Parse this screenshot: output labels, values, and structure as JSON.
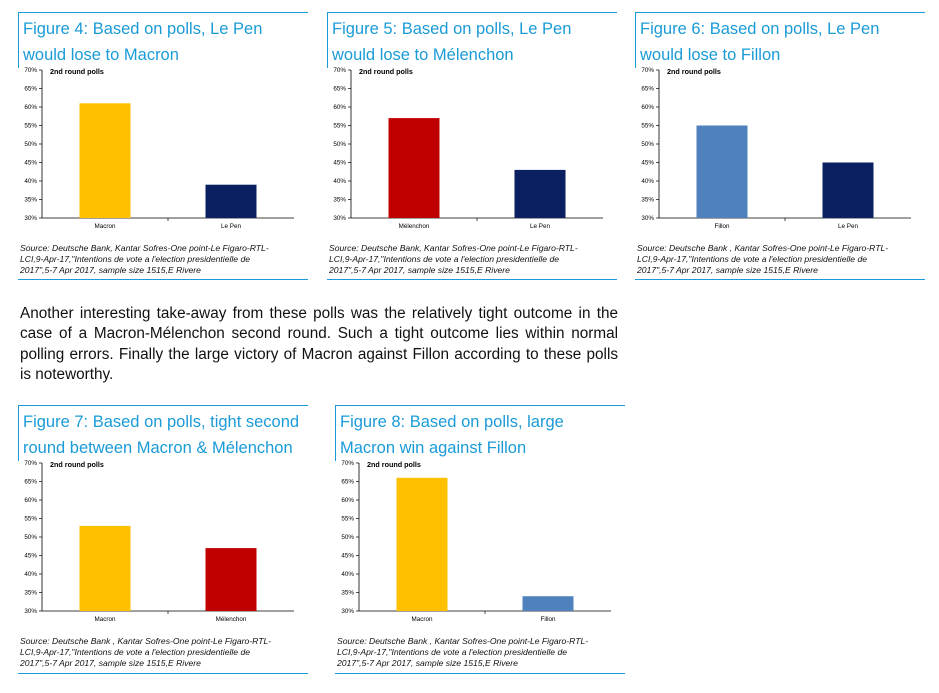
{
  "figures": [
    {
      "title_line1": "Figure 4: Based on polls, Le Pen",
      "title_line2": "would lose to Macron",
      "source_line1": "Source: Deutsche Bank, Kantar Sofres-One point-Le Figaro-RTL-",
      "source_line2": "LCI,9-Apr-17,\"Intentions de vote a l'election presidentielle de",
      "source_line3": "2017\",5-7 Apr 2017, sample size 1515,E Rivere"
    },
    {
      "title_line1": "Figure 5: Based on polls, Le Pen",
      "title_line2": "would lose to Mélenchon",
      "source_line1": "Source: Deutsche Bank, Kantar Sofres-One point-Le Figaro-RTL-",
      "source_line2": "LCI,9-Apr-17,\"Intentions de vote a l'election presidentielle de",
      "source_line3": "2017\",5-7 Apr 2017, sample size 1515,E Rivere"
    },
    {
      "title_line1": "Figure 6: Based on polls, Le Pen",
      "title_line2": "would lose to Fillon",
      "source_line1": "Source: Deutsche Bank , Kantar Sofres-One point-Le Figaro-RTL-",
      "source_line2": "LCI,9-Apr-17,\"Intentions de vote a l'election presidentielle de",
      "source_line3": "2017\",5-7 Apr 2017, sample size 1515,E Rivere"
    },
    {
      "title_line1": "Figure 7: Based on polls, tight second",
      "title_line2": "round between Macron & Mélenchon",
      "source_line1": "Source: Deutsche Bank , Kantar Sofres-One point-Le Figaro-RTL-",
      "source_line2": "LCI,9-Apr-17,\"Intentions de vote a l'election presidentielle de",
      "source_line3": "2017\",5-7 Apr 2017, sample size 1515,E Rivere"
    },
    {
      "title_line1": "Figure 8: Based on polls, large",
      "title_line2": "Macron win against Fillon",
      "source_line1": "Source: Deutsche Bank , Kantar Sofres-One point-Le Figaro-RTL-",
      "source_line2": "LCI,9-Apr-17,\"Intentions de vote a l'election presidentielle de",
      "source_line3": "2017\",5-7 Apr 2017, sample size 1515,E Rivere"
    }
  ],
  "body_text": "Another interesting take-away from these polls was the relatively tight outcome in the case of a Macron-Mélenchon second round. Such a tight outcome lies within normal polling errors. Finally the large victory of Macron against Fillon according to these polls is noteworthy.",
  "chart_data": [
    {
      "type": "bar",
      "title": "2nd round polls",
      "categories": [
        "Macron",
        "Le Pen"
      ],
      "values": [
        61,
        39
      ],
      "colors": [
        "#ffc000",
        "#0b2060"
      ],
      "ylim": [
        30,
        70
      ],
      "yticks": [
        "30%",
        "35%",
        "40%",
        "45%",
        "50%",
        "55%",
        "60%",
        "65%",
        "70%"
      ],
      "unit": "%"
    },
    {
      "type": "bar",
      "title": "2nd round polls",
      "categories": [
        "Mélenchon",
        "Le Pen"
      ],
      "values": [
        57,
        43
      ],
      "colors": [
        "#c00000",
        "#0b2060"
      ],
      "ylim": [
        30,
        70
      ],
      "yticks": [
        "30%",
        "35%",
        "40%",
        "45%",
        "50%",
        "55%",
        "60%",
        "65%",
        "70%"
      ],
      "unit": "%"
    },
    {
      "type": "bar",
      "title": "2nd round polls",
      "categories": [
        "Fillon",
        "Le Pen"
      ],
      "values": [
        55,
        45
      ],
      "colors": [
        "#4f81bd",
        "#0b2060"
      ],
      "ylim": [
        30,
        70
      ],
      "yticks": [
        "30%",
        "35%",
        "40%",
        "45%",
        "50%",
        "55%",
        "60%",
        "65%",
        "70%"
      ],
      "unit": "%"
    },
    {
      "type": "bar",
      "title": "2nd round polls",
      "categories": [
        "Macron",
        "Mélenchon"
      ],
      "values": [
        53,
        47
      ],
      "colors": [
        "#ffc000",
        "#c00000"
      ],
      "ylim": [
        30,
        70
      ],
      "yticks": [
        "30%",
        "35%",
        "40%",
        "45%",
        "50%",
        "55%",
        "60%",
        "65%",
        "70%"
      ],
      "unit": "%"
    },
    {
      "type": "bar",
      "title": "2nd round polls",
      "categories": [
        "Macron",
        "Fillon"
      ],
      "values": [
        66,
        34
      ],
      "colors": [
        "#ffc000",
        "#4f81bd"
      ],
      "ylim": [
        30,
        70
      ],
      "yticks": [
        "30%",
        "35%",
        "40%",
        "45%",
        "50%",
        "55%",
        "60%",
        "65%",
        "70%"
      ],
      "unit": "%"
    }
  ]
}
